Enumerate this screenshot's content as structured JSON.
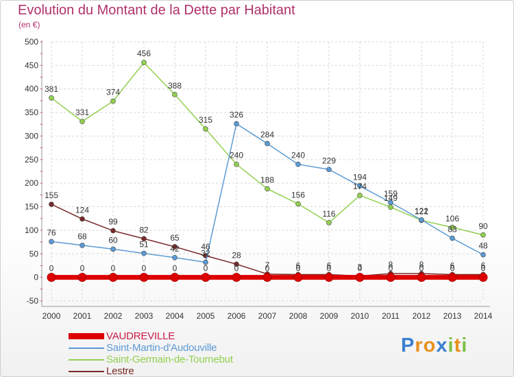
{
  "title": "Evolution du Montant de la Dette par Habitant",
  "unit": "(en €)",
  "logo": {
    "letters": [
      {
        "ch": "P",
        "color": "#3a7fd0"
      },
      {
        "ch": "r",
        "color": "#e8901c"
      },
      {
        "ch": "o",
        "color": "#e8901c"
      },
      {
        "ch": "x",
        "color": "#3a7fd0"
      },
      {
        "ch": "i",
        "color": "#7ac043"
      },
      {
        "ch": "t",
        "color": "#e8901c"
      },
      {
        "ch": "i",
        "color": "#7ac043"
      }
    ]
  },
  "chart_data": {
    "type": "line",
    "x": [
      "2000",
      "2001",
      "2002",
      "2003",
      "2004",
      "2005",
      "2006",
      "2007",
      "2008",
      "2009",
      "2010",
      "2011",
      "2012",
      "2013",
      "2014"
    ],
    "ylim": [
      -50,
      500
    ],
    "yticks": [
      -50,
      0,
      50,
      100,
      150,
      200,
      250,
      300,
      350,
      400,
      450,
      500
    ],
    "grid": true,
    "legend_position": "bottom-left",
    "series": [
      {
        "name": "VAUDREVILLE",
        "color": "#dd0000",
        "values": [
          0,
          0,
          0,
          0,
          0,
          0,
          0,
          0,
          0,
          0,
          0,
          0,
          0,
          0,
          0
        ],
        "labels": [
          "0",
          "0",
          "0",
          "0",
          "0",
          "0",
          "0",
          "0",
          "0",
          "0",
          "0",
          "0",
          "0",
          "0",
          "0"
        ]
      },
      {
        "name": "Saint-Martin-d'Audouville",
        "color": "#5b9bd5",
        "values": [
          76,
          68,
          60,
          51,
          42,
          32,
          326,
          284,
          240,
          229,
          194,
          159,
          122,
          83,
          48
        ],
        "labels": [
          "76",
          "68",
          "60",
          "51",
          "42",
          "32",
          "326",
          "284",
          "240",
          "229",
          "194",
          "159",
          "122",
          "83",
          "48"
        ]
      },
      {
        "name": "Saint-Germain-de-Tournebut",
        "color": "#92d050",
        "values": [
          381,
          331,
          374,
          456,
          388,
          315,
          240,
          188,
          156,
          116,
          174,
          149,
          121,
          106,
          90
        ],
        "labels": [
          "381",
          "331",
          "374",
          "456",
          "388",
          "315",
          "240",
          "188",
          "156",
          "116",
          "174",
          "149",
          "121",
          "106",
          "90"
        ]
      },
      {
        "name": "Lestre",
        "color": "#7a2a2a",
        "values": [
          155,
          124,
          99,
          82,
          65,
          46,
          28,
          7,
          6,
          6,
          3,
          8,
          8,
          6,
          6
        ],
        "labels": [
          "155",
          "124",
          "99",
          "82",
          "65",
          "46",
          "28",
          "7",
          "6",
          "6",
          "3",
          "8",
          "8",
          "6",
          "6"
        ]
      }
    ]
  }
}
